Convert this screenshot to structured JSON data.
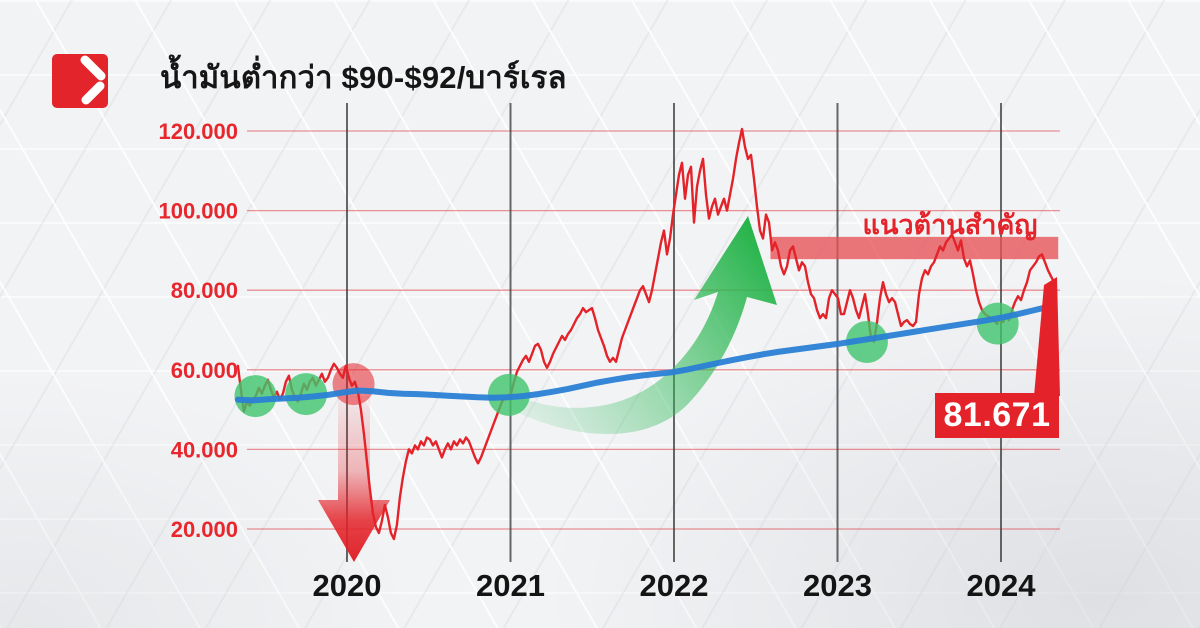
{
  "header": {
    "title": "น้ำมันต่ำกว่า $90-$92/บาร์เรล"
  },
  "logo": {
    "background_color": "#e3242b",
    "glyph_color": "#ffffff",
    "name": "news-brand-logo"
  },
  "colors": {
    "accent_red": "#e3242b",
    "grid_red": "#e05056",
    "year_line_gray": "#3e3e3e",
    "trend_blue": "#2a80d4",
    "highlight_green": "#3fc46d",
    "arrow_green": "#27b44b",
    "background": "#f2f3f5"
  },
  "chart_data": {
    "type": "line",
    "title": "น้ำมันต่ำกว่า $90-$92/บาร์เรล",
    "xlabel": "",
    "ylabel": "",
    "ylim": [
      15,
      122
    ],
    "xlim_years": [
      2019.33,
      2024.35
    ],
    "grid": "horizontal-red-and-vertical-gray",
    "legend_position": "none",
    "y_ticks": [
      {
        "label": "120.000",
        "value": 120
      },
      {
        "label": "100.000",
        "value": 100
      },
      {
        "label": "80.000",
        "value": 80
      },
      {
        "label": "60.000",
        "value": 60
      },
      {
        "label": "40.000",
        "value": 40
      },
      {
        "label": "20.000",
        "value": 20
      }
    ],
    "x_ticks": [
      {
        "label": "2020",
        "year": 2020
      },
      {
        "label": "2021",
        "year": 2021
      },
      {
        "label": "2022",
        "year": 2022
      },
      {
        "label": "2023",
        "year": 2023
      },
      {
        "label": "2024",
        "year": 2024
      }
    ],
    "series": [
      {
        "name": "oil-price-daily",
        "color": "#e32329",
        "width": 2.4,
        "year_start": 2019.333,
        "year_step": 0.018349,
        "values": [
          61,
          55,
          49.5,
          52,
          51,
          52.5,
          53.5,
          55.5,
          54,
          56,
          57.5,
          55,
          53,
          54.5,
          52.5,
          54,
          57,
          58.5,
          55,
          53,
          52,
          54,
          56.5,
          55,
          57,
          58,
          56,
          57.5,
          59,
          57,
          58,
          60,
          61.5,
          60.5,
          59,
          58,
          61,
          58,
          56,
          57,
          54.5,
          50,
          44,
          37,
          30,
          24,
          20.5,
          19,
          22,
          26,
          23,
          19,
          17.5,
          21,
          28,
          33,
          37,
          40,
          39,
          41,
          40,
          42,
          41,
          43,
          42.5,
          41,
          42,
          40,
          38,
          40,
          41.5,
          40,
          42,
          41,
          42.5,
          41.5,
          43,
          42,
          40,
          38,
          36.5,
          38,
          40,
          42,
          44,
          46,
          48,
          50,
          52,
          53,
          53.5,
          54,
          57,
          59.5,
          61,
          62.5,
          63.5,
          62,
          64,
          66,
          66.5,
          65,
          62,
          60.5,
          62,
          64,
          65.5,
          67,
          68.5,
          67.5,
          69,
          70,
          71.5,
          73,
          74,
          75.5,
          74.5,
          75,
          75.5,
          73,
          70,
          68,
          66,
          63.5,
          62,
          63,
          62,
          65,
          68,
          70,
          72,
          74,
          76,
          78,
          80,
          81,
          79,
          77,
          80,
          84,
          88,
          92,
          95,
          89,
          93,
          99,
          104,
          109,
          112,
          103,
          109,
          111,
          97,
          106,
          110,
          113,
          104,
          98,
          101,
          103,
          99,
          101,
          103,
          100,
          104,
          108,
          113,
          117,
          120.5,
          116,
          113,
          114,
          108,
          101,
          95,
          93,
          99,
          97,
          90,
          92,
          90,
          86,
          84,
          86,
          90,
          91,
          88,
          85,
          87,
          86,
          82,
          79,
          78,
          75,
          73,
          74,
          73,
          78,
          80,
          79,
          78,
          74,
          74,
          77,
          80,
          78,
          75,
          73,
          76,
          79,
          74,
          68,
          67,
          72,
          78,
          82,
          79,
          77,
          78,
          77,
          74,
          71,
          72,
          72.5,
          71.5,
          71,
          72,
          79,
          83,
          85,
          84,
          86,
          87,
          89,
          91,
          90,
          92,
          93,
          94,
          92,
          90,
          92.5,
          88,
          86,
          87.5,
          84,
          80,
          77,
          75,
          74,
          73.5,
          73,
          72.5,
          71.5,
          73,
          72,
          73.5,
          72.5,
          75,
          77,
          78.5,
          77.5,
          80,
          82,
          85,
          86,
          87,
          88.5,
          89,
          87,
          85,
          83.5,
          82
        ]
      },
      {
        "name": "ma-trend",
        "color": "#2a80d4",
        "width": 6,
        "year_start": 2019.333,
        "year_step": 0.091743,
        "values": [
          52.5,
          52.3,
          52.6,
          52.8,
          53.0,
          53.3,
          53.7,
          54.3,
          54.8,
          54.6,
          54.2,
          54.0,
          53.9,
          53.7,
          53.5,
          53.3,
          53.1,
          53.0,
          53.1,
          53.4,
          53.9,
          54.5,
          55.2,
          56.0,
          56.8,
          57.5,
          58.1,
          58.6,
          59.0,
          59.4,
          60.1,
          60.9,
          61.7,
          62.5,
          63.2,
          63.9,
          64.5,
          65.0,
          65.5,
          66.0,
          66.5,
          67.1,
          67.7,
          68.3,
          68.9,
          69.5,
          70.1,
          70.7,
          71.3,
          71.9,
          72.5,
          73.2,
          74.0,
          74.9,
          75.8
        ]
      }
    ],
    "highlight_circles": [
      {
        "name": "support-zone-circle",
        "year": 2019.44,
        "price": 53.4,
        "r": 21,
        "color": "#3fc46d",
        "opacity": 0.8
      },
      {
        "name": "support-zone-circle",
        "year": 2019.75,
        "price": 53.9,
        "r": 21,
        "color": "#3fc46d",
        "opacity": 0.8
      },
      {
        "name": "support-zone-circle",
        "year": 2020.99,
        "price": 53.7,
        "r": 21,
        "color": "#3fc46d",
        "opacity": 0.8
      },
      {
        "name": "support-zone-circle",
        "year": 2023.18,
        "price": 67.0,
        "r": 21,
        "color": "#3fc46d",
        "opacity": 0.8
      },
      {
        "name": "support-zone-circle",
        "year": 2023.98,
        "price": 71.6,
        "r": 21,
        "color": "#3fc46d",
        "opacity": 0.8
      },
      {
        "name": "breakdown-circle",
        "year": 2020.04,
        "price": 56.4,
        "r": 21,
        "color": "#e32329",
        "opacity": 0.55
      }
    ],
    "resistance": {
      "label": "แนวต้านสำคัญ",
      "year_start": 2022.59,
      "year_end": 2024.35,
      "price_top": 93.4,
      "price_bottom": 87.8,
      "color": "#e85156"
    },
    "price_tag": {
      "label": "81.671",
      "value": 81.671
    },
    "annotations": [
      {
        "name": "up-trend-arrow",
        "color": "#27b44b",
        "meaning": "rally from 2021 lows to 2022 peak"
      },
      {
        "name": "down-trend-arrow",
        "color": "#e3242b",
        "meaning": "2020 price crash"
      }
    ]
  }
}
